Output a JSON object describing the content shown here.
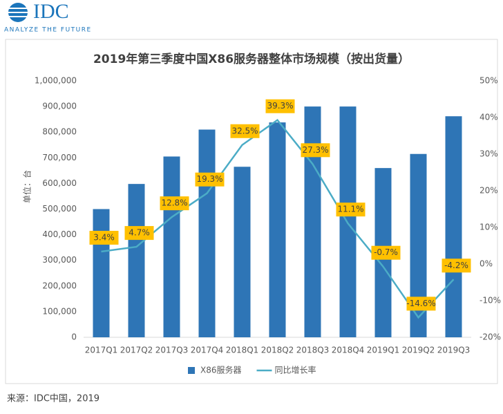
{
  "logo": {
    "name": "IDC",
    "tagline": "ANALYZE THE FUTURE"
  },
  "source": "来源：IDC中国，2019",
  "chart_data": {
    "type": "bar",
    "title": "2019年第三季度中国X86服务器整体市场规模（按出货量）",
    "y_label": "单位：台",
    "categories": [
      "2017Q1",
      "2017Q2",
      "2017Q3",
      "2017Q4",
      "2018Q1",
      "2018Q2",
      "2018Q3",
      "2018Q4",
      "2019Q1",
      "2019Q2",
      "2019Q3"
    ],
    "series": [
      {
        "name": "X86服务器",
        "type": "bar",
        "color": "#2e75b6",
        "values": [
          500000,
          598000,
          705000,
          810000,
          665000,
          838000,
          900000,
          900000,
          660000,
          715000,
          862000
        ]
      },
      {
        "name": "同比增长率",
        "type": "line",
        "color": "#4bacc6",
        "axis": "y2",
        "values": [
          3.4,
          4.7,
          12.8,
          19.3,
          32.5,
          39.3,
          27.3,
          11.1,
          -0.7,
          -14.6,
          -4.2
        ],
        "value_labels": [
          "3.4%",
          "4.7%",
          "12.8%",
          "19.3%",
          "32.5%",
          "39.3%",
          "27.3%",
          "11.1%",
          "-0.7%",
          "-14.6%",
          "-4.2%"
        ]
      }
    ],
    "ylim": [
      0,
      1000000
    ],
    "yticks": [
      0,
      {
        "value": 100000,
        "label": "100,000"
      },
      {
        "value": 200000,
        "label": "200,000"
      },
      {
        "value": 300000,
        "label": "300,000"
      },
      {
        "value": 400000,
        "label": "400,000"
      },
      {
        "value": 500000,
        "label": "500,000"
      },
      {
        "value": 600000,
        "label": "600,000"
      },
      {
        "value": 700000,
        "label": "700,000"
      },
      {
        "value": 800000,
        "label": "800,000"
      },
      {
        "value": 900000,
        "label": "900,000"
      },
      {
        "value": 1000000,
        "label": "1,000,000"
      }
    ],
    "y2lim": [
      -20,
      50
    ],
    "y2ticks": [
      {
        "value": -20,
        "label": "-20%"
      },
      {
        "value": -10,
        "label": "-10%"
      },
      {
        "value": 0,
        "label": "0%"
      },
      {
        "value": 10,
        "label": "10%"
      },
      {
        "value": 20,
        "label": "20%"
      },
      {
        "value": 30,
        "label": "30%"
      },
      {
        "value": 40,
        "label": "40%"
      },
      {
        "value": 50,
        "label": "50%"
      }
    ],
    "legend": "bottom"
  }
}
